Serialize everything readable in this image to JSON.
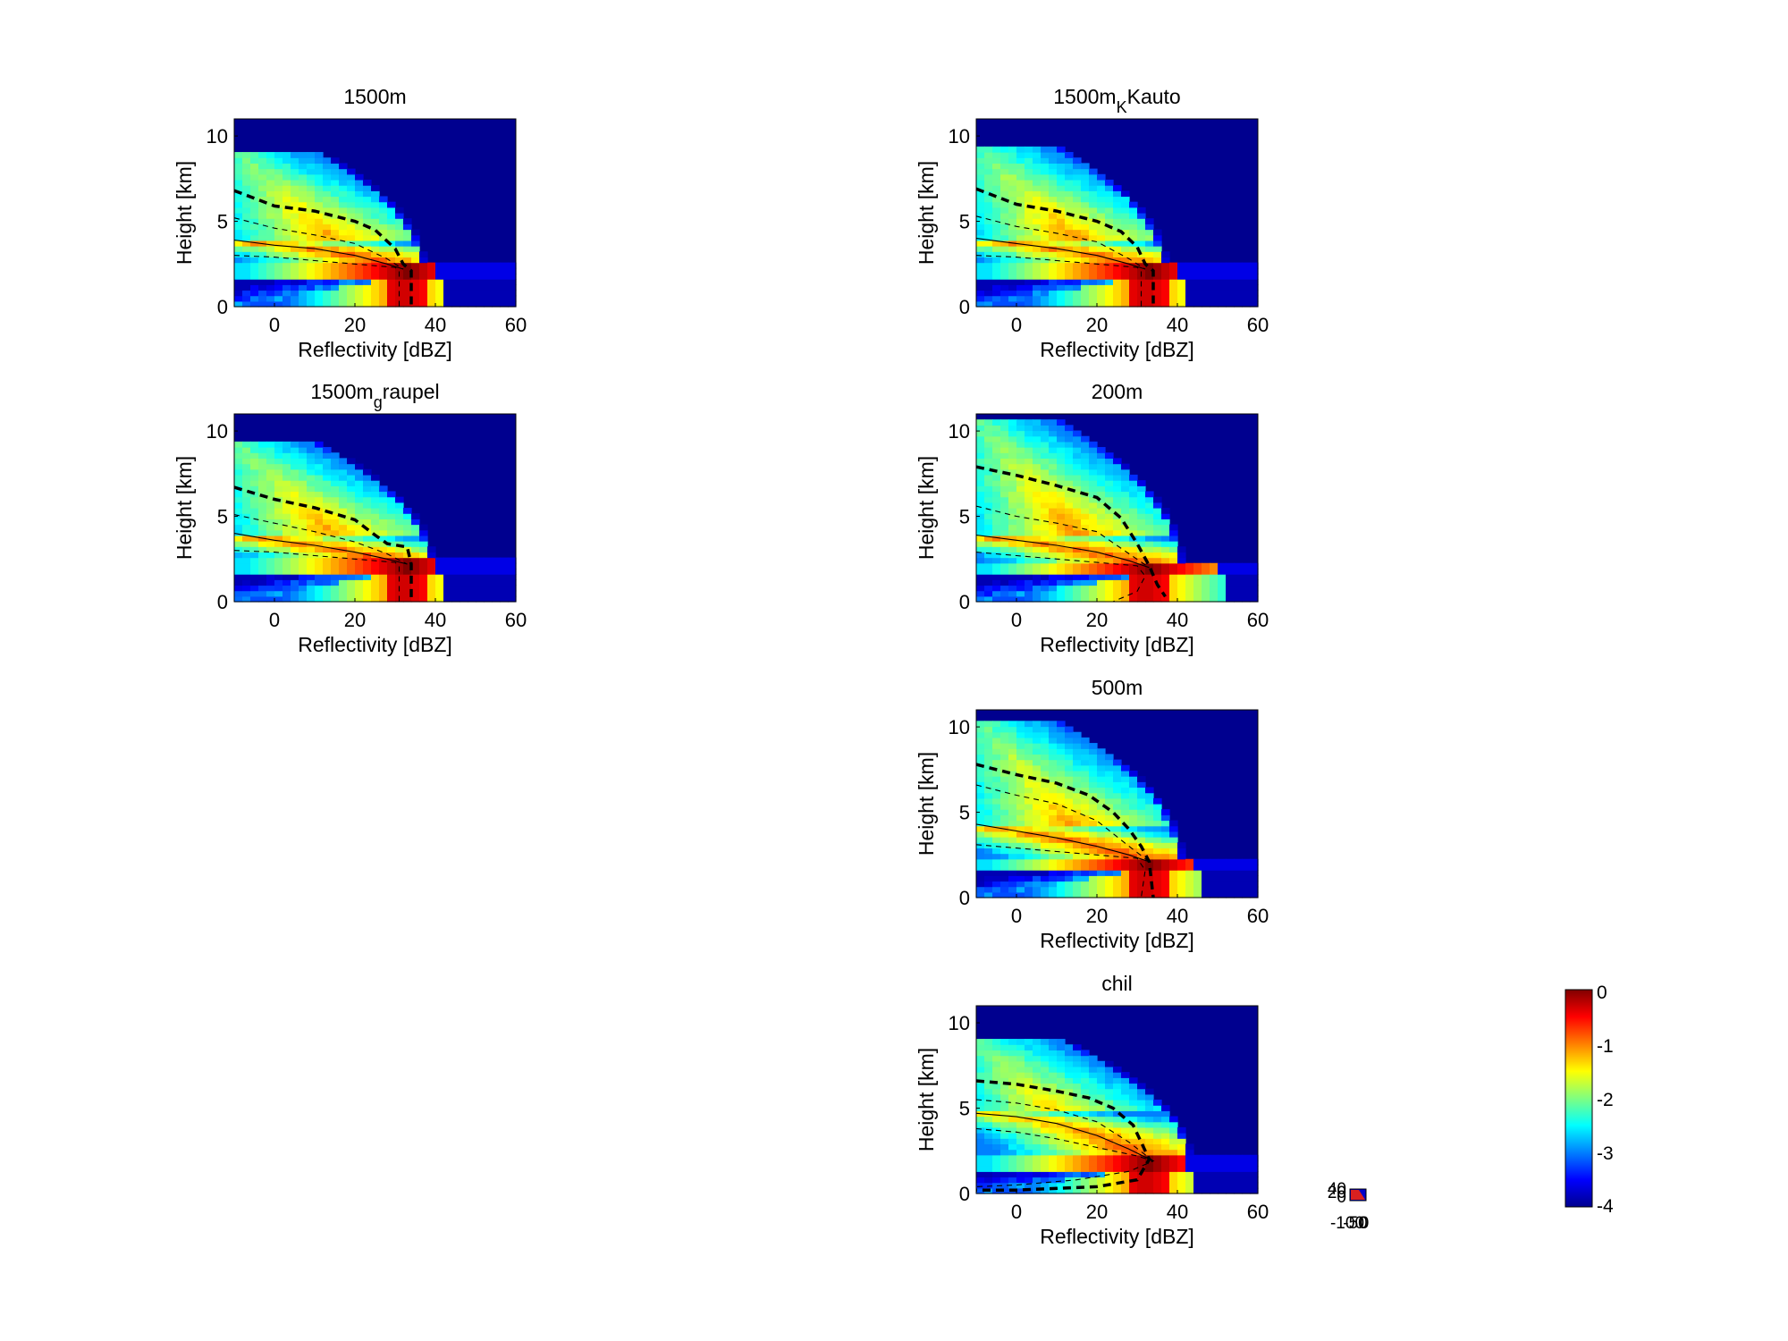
{
  "figure": {
    "colorbar": {
      "ticks": [
        "0",
        "-1",
        "-2",
        "-3",
        "-4"
      ],
      "range": [
        -4,
        0
      ],
      "colormap": "jet"
    },
    "mini_axis": {
      "x_ticks": [
        "-100",
        "-50",
        "0"
      ],
      "y_ticks": [
        "40",
        "20",
        "0"
      ]
    }
  },
  "chart_data": [
    {
      "type": "heatmap",
      "title_main": "1500m",
      "title_sub": "",
      "title_after": "",
      "xlabel": "Reflectivity [dBZ]",
      "ylabel": "Height [km]",
      "xlim": [
        -10,
        60
      ],
      "ylim": [
        0,
        11
      ],
      "xticks": [
        "0",
        "20",
        "40",
        "60"
      ],
      "yticks": [
        "0",
        "5",
        "10"
      ],
      "bright_band_km": 2.2,
      "echo_top_km": 8.8,
      "top_extent_dbz": 36,
      "bottom_extent_dbz": 42,
      "percentile_lines": {
        "p90_thick_dashed": [
          [
            -10,
            6.8
          ],
          [
            0,
            5.9
          ],
          [
            10,
            5.6
          ],
          [
            20,
            5.0
          ],
          [
            25,
            4.5
          ],
          [
            30,
            3.4
          ],
          [
            32,
            2.5
          ],
          [
            34,
            2.1
          ],
          [
            34,
            0
          ]
        ],
        "p75_dashed": [
          [
            -10,
            5.2
          ],
          [
            0,
            4.6
          ],
          [
            10,
            4.2
          ],
          [
            20,
            3.7
          ],
          [
            28,
            2.8
          ],
          [
            32,
            2.2
          ]
        ],
        "p50_solid": [
          [
            -10,
            3.9
          ],
          [
            0,
            3.6
          ],
          [
            10,
            3.4
          ],
          [
            20,
            3.0
          ],
          [
            28,
            2.5
          ],
          [
            32,
            2.2
          ]
        ],
        "p25_dashed": [
          [
            -10,
            3.0
          ],
          [
            0,
            2.9
          ],
          [
            10,
            2.7
          ],
          [
            20,
            2.5
          ],
          [
            30,
            2.3
          ],
          [
            31,
            2.1
          ],
          [
            31,
            0
          ]
        ]
      }
    },
    {
      "type": "heatmap",
      "title_main": "1500m",
      "title_sub": "K",
      "title_after": "Kauto",
      "xlabel": "Reflectivity [dBZ]",
      "ylabel": "Height [km]",
      "xlim": [
        -10,
        60
      ],
      "ylim": [
        0,
        11
      ],
      "xticks": [
        "0",
        "20",
        "40",
        "60"
      ],
      "yticks": [
        "0",
        "5",
        "10"
      ],
      "bright_band_km": 2.2,
      "echo_top_km": 9.0,
      "top_extent_dbz": 36,
      "bottom_extent_dbz": 42,
      "percentile_lines": {
        "p90_thick_dashed": [
          [
            -10,
            6.9
          ],
          [
            0,
            6.0
          ],
          [
            10,
            5.6
          ],
          [
            20,
            5.0
          ],
          [
            26,
            4.4
          ],
          [
            30,
            3.5
          ],
          [
            32,
            2.5
          ],
          [
            34,
            2.1
          ],
          [
            34,
            0
          ]
        ],
        "p75_dashed": [
          [
            -10,
            5.3
          ],
          [
            0,
            4.7
          ],
          [
            10,
            4.3
          ],
          [
            20,
            3.8
          ],
          [
            28,
            2.8
          ],
          [
            32,
            2.2
          ]
        ],
        "p50_solid": [
          [
            -10,
            4.0
          ],
          [
            0,
            3.7
          ],
          [
            10,
            3.4
          ],
          [
            20,
            3.0
          ],
          [
            28,
            2.5
          ],
          [
            32,
            2.2
          ]
        ],
        "p25_dashed": [
          [
            -10,
            3.0
          ],
          [
            0,
            2.9
          ],
          [
            10,
            2.7
          ],
          [
            20,
            2.5
          ],
          [
            30,
            2.3
          ],
          [
            31,
            2.1
          ],
          [
            31,
            0
          ]
        ]
      }
    },
    {
      "type": "heatmap",
      "title_main": "1500m",
      "title_sub": "g",
      "title_after": "raupel",
      "xlabel": "Reflectivity [dBZ]",
      "ylabel": "Height [km]",
      "xlim": [
        -10,
        60
      ],
      "ylim": [
        0,
        11
      ],
      "xticks": [
        "0",
        "20",
        "40",
        "60"
      ],
      "yticks": [
        "0",
        "5",
        "10"
      ],
      "bright_band_km": 2.2,
      "echo_top_km": 9.0,
      "top_extent_dbz": 38,
      "bottom_extent_dbz": 42,
      "percentile_lines": {
        "p90_thick_dashed": [
          [
            -10,
            6.7
          ],
          [
            0,
            6.0
          ],
          [
            10,
            5.5
          ],
          [
            20,
            4.8
          ],
          [
            25,
            3.9
          ],
          [
            28,
            3.4
          ],
          [
            33,
            3.2
          ],
          [
            34,
            2.2
          ],
          [
            34,
            0
          ]
        ],
        "p75_dashed": [
          [
            -10,
            5.1
          ],
          [
            0,
            4.6
          ],
          [
            10,
            4.1
          ],
          [
            20,
            3.5
          ],
          [
            28,
            2.8
          ],
          [
            33,
            2.2
          ]
        ],
        "p50_solid": [
          [
            -10,
            4.0
          ],
          [
            0,
            3.6
          ],
          [
            10,
            3.3
          ],
          [
            20,
            2.9
          ],
          [
            28,
            2.5
          ],
          [
            33,
            2.2
          ]
        ],
        "p25_dashed": [
          [
            -10,
            3.0
          ],
          [
            0,
            2.9
          ],
          [
            10,
            2.7
          ],
          [
            20,
            2.5
          ],
          [
            30,
            2.3
          ],
          [
            31,
            2.1
          ],
          [
            31,
            0
          ]
        ]
      }
    },
    {
      "type": "heatmap",
      "title_main": "200m",
      "title_sub": "",
      "title_after": "",
      "xlabel": "Reflectivity [dBZ]",
      "ylabel": "Height [km]",
      "xlim": [
        -10,
        60
      ],
      "ylim": [
        0,
        11
      ],
      "xticks": [
        "0",
        "20",
        "40",
        "60"
      ],
      "yticks": [
        "0",
        "5",
        "10"
      ],
      "bright_band_km": 2.0,
      "echo_top_km": 10.3,
      "top_extent_dbz": 40,
      "bottom_extent_dbz": 52,
      "percentile_lines": {
        "p90_thick_dashed": [
          [
            -10,
            7.9
          ],
          [
            0,
            7.4
          ],
          [
            10,
            6.8
          ],
          [
            20,
            6.1
          ],
          [
            26,
            4.9
          ],
          [
            30,
            3.4
          ],
          [
            33,
            2.1
          ],
          [
            35,
            1.0
          ],
          [
            37,
            0.3
          ]
        ],
        "p75_dashed": [
          [
            -10,
            5.6
          ],
          [
            0,
            5.0
          ],
          [
            10,
            4.6
          ],
          [
            20,
            4.1
          ],
          [
            28,
            2.8
          ],
          [
            33,
            2.0
          ]
        ],
        "p50_solid": [
          [
            -10,
            3.9
          ],
          [
            0,
            3.6
          ],
          [
            10,
            3.3
          ],
          [
            20,
            2.9
          ],
          [
            28,
            2.4
          ],
          [
            33,
            2.0
          ]
        ],
        "p25_dashed": [
          [
            -10,
            2.9
          ],
          [
            0,
            2.7
          ],
          [
            10,
            2.5
          ],
          [
            20,
            2.3
          ],
          [
            30,
            2.1
          ],
          [
            32,
            1.5
          ],
          [
            30,
            0.6
          ],
          [
            24,
            0
          ]
        ]
      }
    },
    {
      "type": "heatmap",
      "title_main": "500m",
      "title_sub": "",
      "title_after": "",
      "xlabel": "Reflectivity [dBZ]",
      "ylabel": "Height [km]",
      "xlim": [
        -10,
        60
      ],
      "ylim": [
        0,
        11
      ],
      "xticks": [
        "0",
        "20",
        "40",
        "60"
      ],
      "yticks": [
        "0",
        "5",
        "10"
      ],
      "bright_band_km": 2.1,
      "echo_top_km": 10.0,
      "top_extent_dbz": 40,
      "bottom_extent_dbz": 46,
      "percentile_lines": {
        "p90_thick_dashed": [
          [
            -10,
            7.8
          ],
          [
            0,
            7.2
          ],
          [
            10,
            6.7
          ],
          [
            18,
            6.0
          ],
          [
            24,
            5.0
          ],
          [
            28,
            4.0
          ],
          [
            31,
            3.0
          ],
          [
            33,
            2.1
          ],
          [
            34,
            0
          ]
        ],
        "p75_dashed": [
          [
            -10,
            6.6
          ],
          [
            0,
            6.0
          ],
          [
            10,
            5.5
          ],
          [
            20,
            4.5
          ],
          [
            28,
            3.0
          ],
          [
            33,
            2.1
          ]
        ],
        "p50_solid": [
          [
            -10,
            4.3
          ],
          [
            0,
            3.9
          ],
          [
            10,
            3.5
          ],
          [
            20,
            3.0
          ],
          [
            28,
            2.5
          ],
          [
            33,
            2.1
          ]
        ],
        "p25_dashed": [
          [
            -10,
            3.1
          ],
          [
            0,
            2.9
          ],
          [
            10,
            2.7
          ],
          [
            20,
            2.5
          ],
          [
            30,
            2.3
          ],
          [
            32,
            1.6
          ],
          [
            31,
            0
          ]
        ]
      }
    },
    {
      "type": "heatmap",
      "title_main": "chil",
      "title_sub": "",
      "title_after": "",
      "xlabel": "Reflectivity [dBZ]",
      "ylabel": "Height [km]",
      "xlim": [
        -10,
        60
      ],
      "ylim": [
        0,
        11
      ],
      "xticks": [
        "0",
        "20",
        "40",
        "60"
      ],
      "yticks": [
        "0",
        "5",
        "10"
      ],
      "bright_band_km": 1.9,
      "echo_top_km": 8.8,
      "top_extent_dbz": 42,
      "bottom_extent_dbz": 44,
      "percentile_lines": {
        "p90_thick_dashed": [
          [
            -10,
            6.6
          ],
          [
            0,
            6.4
          ],
          [
            10,
            6.0
          ],
          [
            18,
            5.6
          ],
          [
            24,
            5.0
          ],
          [
            29,
            4.0
          ],
          [
            31,
            3.0
          ],
          [
            33,
            2.0
          ],
          [
            30,
            0.8
          ],
          [
            20,
            0.4
          ],
          [
            0,
            0.2
          ],
          [
            -10,
            0.2
          ]
        ],
        "p75_dashed": [
          [
            -10,
            5.5
          ],
          [
            0,
            5.3
          ],
          [
            10,
            4.9
          ],
          [
            20,
            4.2
          ],
          [
            28,
            3.0
          ],
          [
            34,
            1.9
          ]
        ],
        "p50_solid": [
          [
            -10,
            4.7
          ],
          [
            0,
            4.5
          ],
          [
            10,
            4.1
          ],
          [
            20,
            3.4
          ],
          [
            28,
            2.6
          ],
          [
            34,
            1.9
          ]
        ],
        "p25_dashed": [
          [
            -10,
            3.8
          ],
          [
            0,
            3.6
          ],
          [
            10,
            3.2
          ],
          [
            20,
            2.7
          ],
          [
            30,
            2.2
          ],
          [
            34,
            1.9
          ],
          [
            28,
            1.3
          ],
          [
            15,
            0.8
          ],
          [
            0,
            0.5
          ],
          [
            -10,
            0.4
          ]
        ]
      }
    }
  ]
}
